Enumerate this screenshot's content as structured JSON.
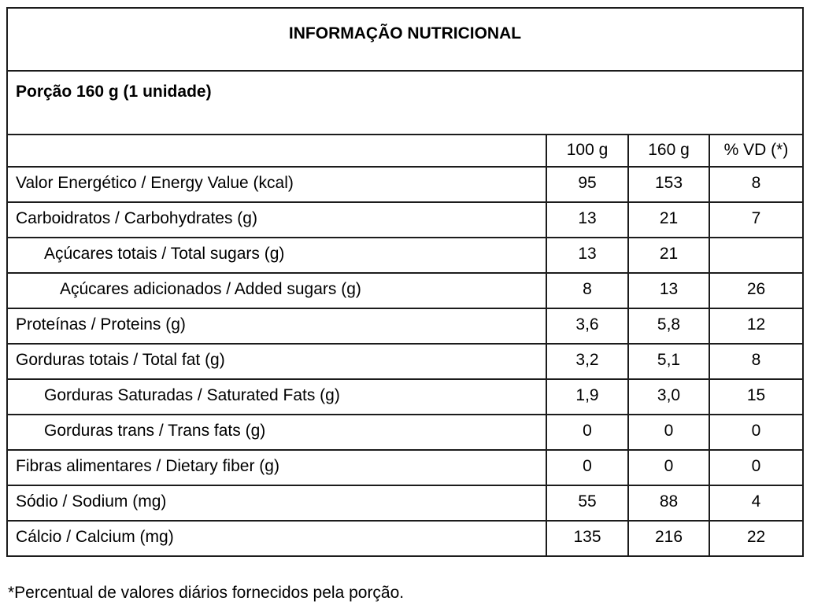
{
  "colors": {
    "background": "#ffffff",
    "border": "#1c1c1c",
    "text": "#000000"
  },
  "table": {
    "title": "INFORMAÇÃO NUTRICIONAL",
    "serving": "Porção 160 g (1 unidade)",
    "columns": {
      "label": "",
      "per_100g": "100 g",
      "per_160g": "160 g",
      "vd": "% VD (*)"
    },
    "rows": [
      {
        "label": "Valor Energético / Energy Value (kcal)",
        "per_100g": "95",
        "per_160g": "153",
        "vd": "8",
        "indent": 0
      },
      {
        "label": "Carboidratos / Carbohydrates (g)",
        "per_100g": "13",
        "per_160g": "21",
        "vd": "7",
        "indent": 0
      },
      {
        "label": "Açúcares totais / Total sugars (g)",
        "per_100g": "13",
        "per_160g": "21",
        "vd": "",
        "indent": 1
      },
      {
        "label": "Açúcares adicionados / Added sugars (g)",
        "per_100g": "8",
        "per_160g": "13",
        "vd": "26",
        "indent": 2
      },
      {
        "label": "Proteínas / Proteins (g)",
        "per_100g": "3,6",
        "per_160g": "5,8",
        "vd": "12",
        "indent": 0
      },
      {
        "label": "Gorduras totais / Total fat (g)",
        "per_100g": "3,2",
        "per_160g": "5,1",
        "vd": "8",
        "indent": 0
      },
      {
        "label": "Gorduras Saturadas / Saturated Fats (g)",
        "per_100g": "1,9",
        "per_160g": "3,0",
        "vd": "15",
        "indent": 1
      },
      {
        "label": "Gorduras trans / Trans fats (g)",
        "per_100g": "0",
        "per_160g": "0",
        "vd": "0",
        "indent": 1
      },
      {
        "label": "Fibras alimentares / Dietary fiber (g)",
        "per_100g": "0",
        "per_160g": "0",
        "vd": "0",
        "indent": 0
      },
      {
        "label": "Sódio / Sodium (mg)",
        "per_100g": "55",
        "per_160g": "88",
        "vd": "4",
        "indent": 0
      },
      {
        "label": "Cálcio / Calcium (mg)",
        "per_100g": "135",
        "per_160g": "216",
        "vd": "22",
        "indent": 0
      }
    ],
    "footnote": "*Percentual de valores diários fornecidos pela porção."
  }
}
